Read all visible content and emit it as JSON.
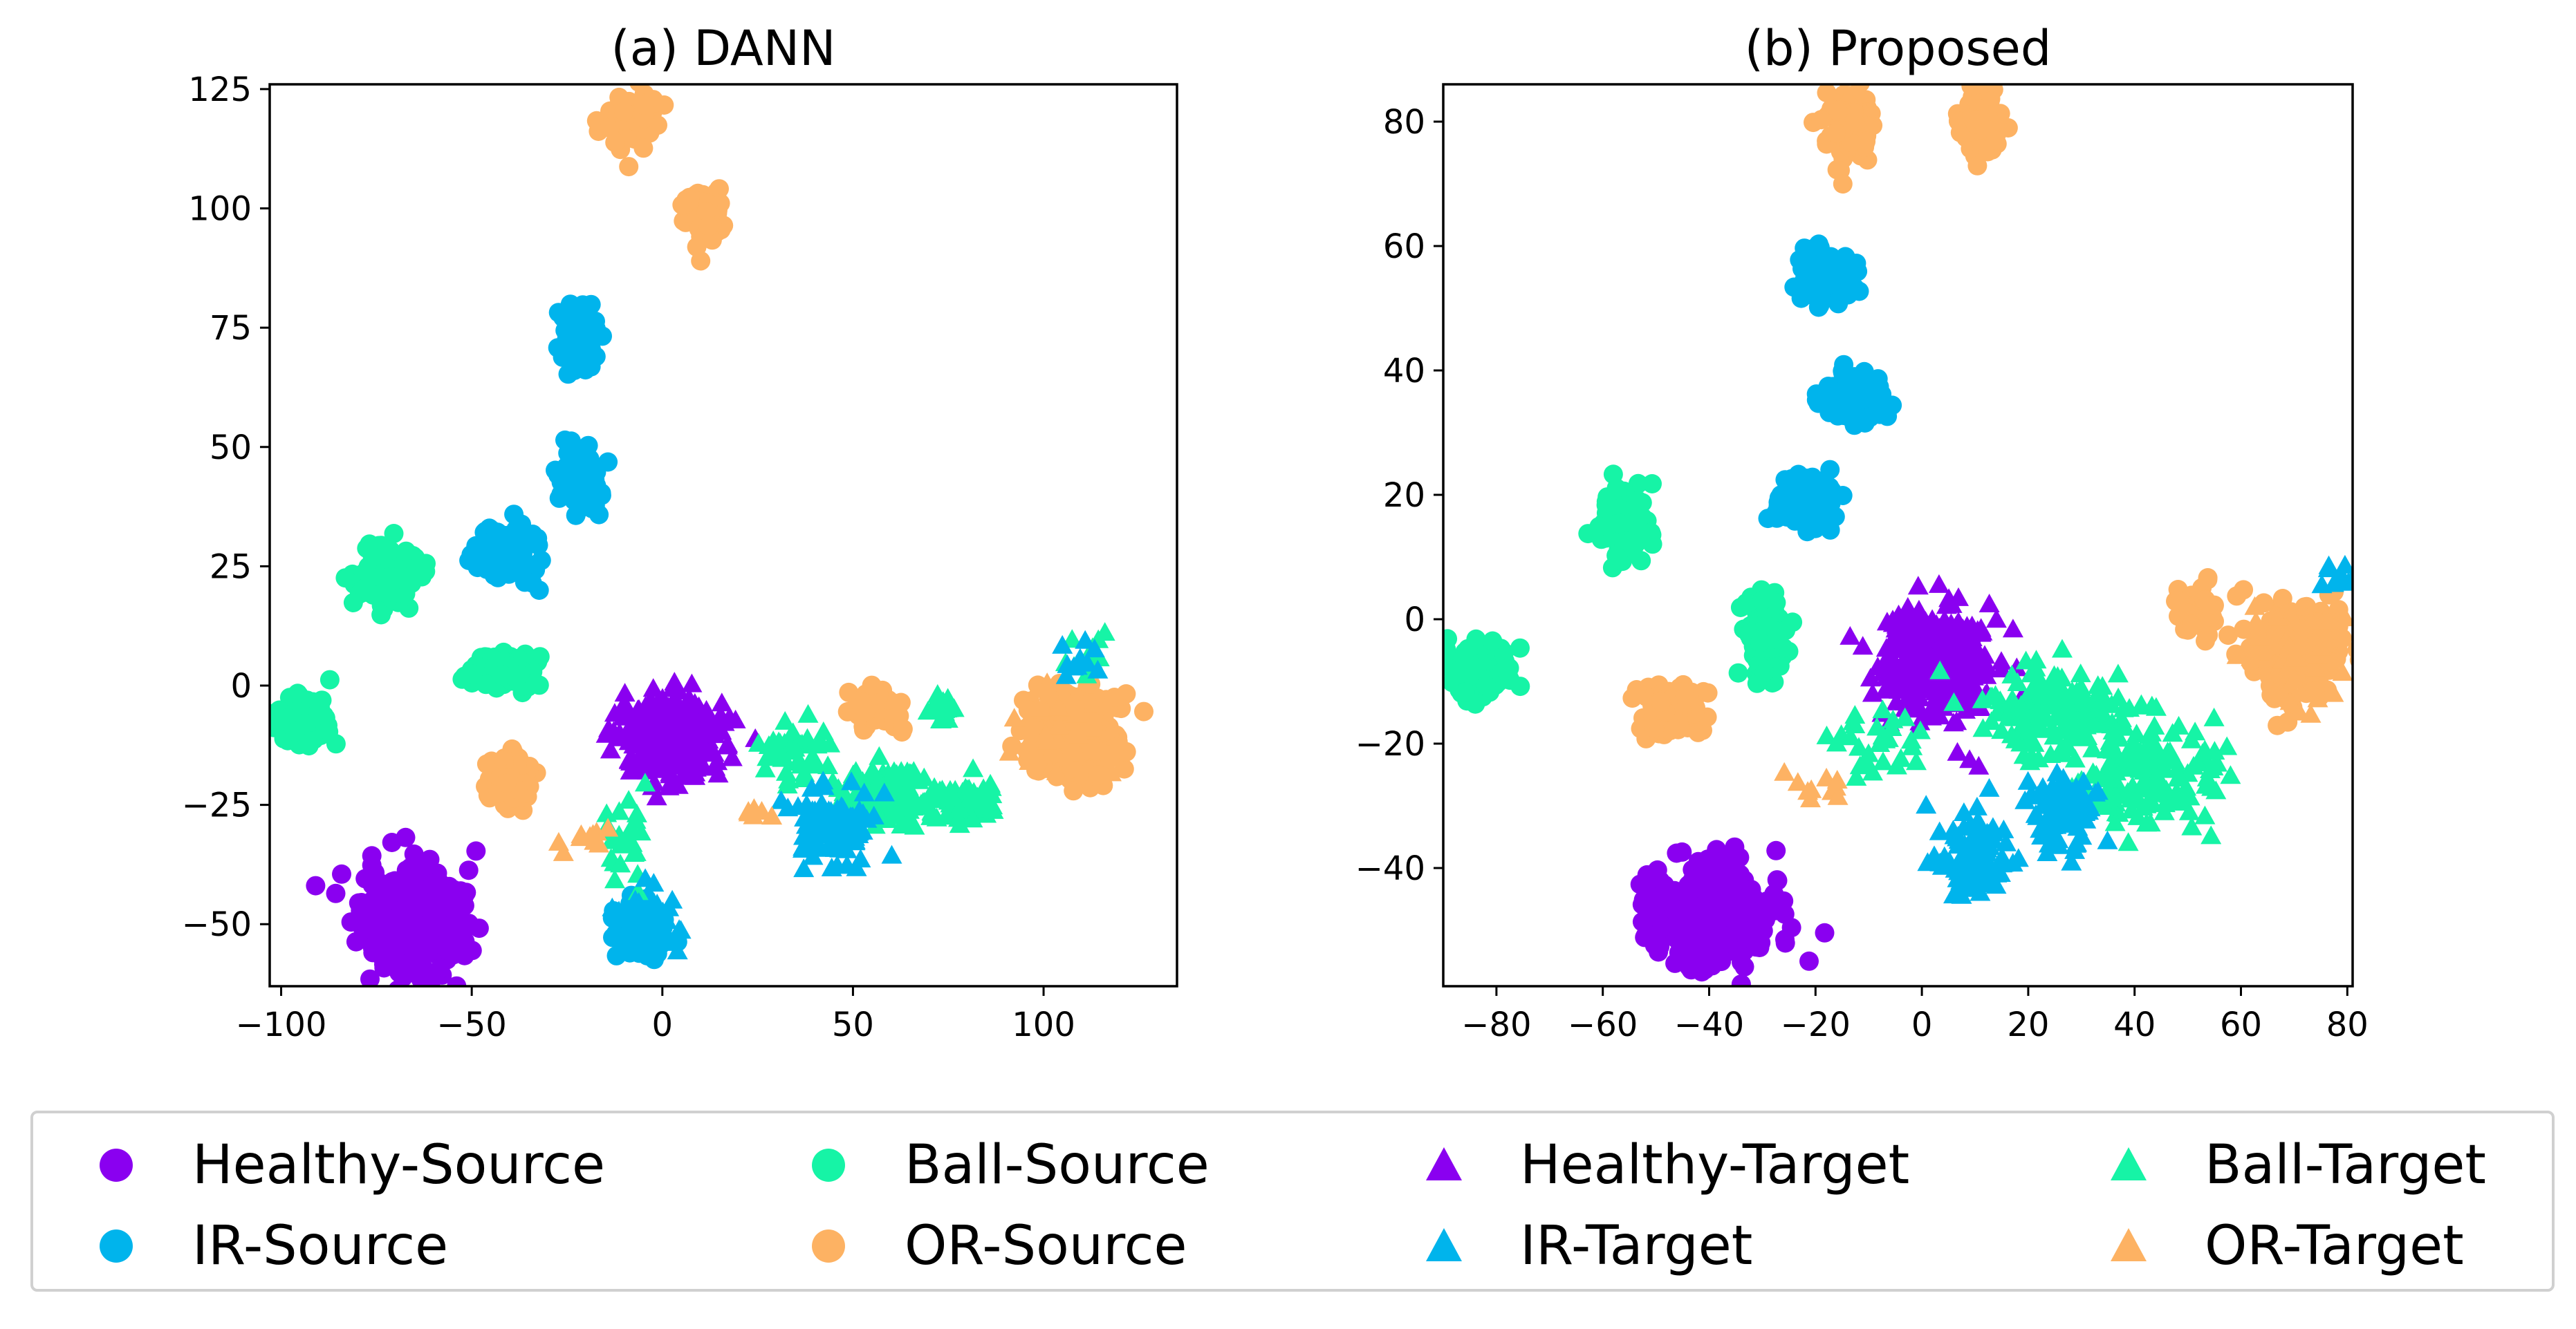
{
  "colors": {
    "healthy": "#8a00f0",
    "ir": "#00b4ec",
    "ball": "#16f4a6",
    "or": "#fdb263"
  },
  "legend": [
    {
      "label": "Healthy-Source",
      "marker": "circle",
      "color": "#8a00f0"
    },
    {
      "label": "Ball-Source",
      "marker": "circle",
      "color": "#16f4a6"
    },
    {
      "label": "Healthy-Target",
      "marker": "triangle",
      "color": "#8a00f0"
    },
    {
      "label": "Ball-Target",
      "marker": "triangle",
      "color": "#16f4a6"
    },
    {
      "label": "IR-Source",
      "marker": "circle",
      "color": "#00b4ec"
    },
    {
      "label": "OR-Source",
      "marker": "circle",
      "color": "#fdb263"
    },
    {
      "label": "IR-Target",
      "marker": "triangle",
      "color": "#00b4ec"
    },
    {
      "label": "OR-Target",
      "marker": "triangle",
      "color": "#fdb263"
    }
  ],
  "chart_data": [
    {
      "type": "scatter",
      "title": "(a) DANN",
      "xlabel": "",
      "ylabel": "",
      "xlim": [
        -103,
        135
      ],
      "ylim": [
        -63,
        126
      ],
      "xticks": [
        -100,
        -50,
        0,
        50,
        100
      ],
      "yticks": [
        -50,
        -25,
        0,
        25,
        50,
        75,
        100,
        125
      ],
      "legend_position": "bottom",
      "clusters": [
        {
          "series": "Healthy-Source",
          "marker": "circle",
          "color": "#8a00f0",
          "cx": -65,
          "cy": -50,
          "sx": 6.5,
          "sy": 5.5,
          "n": 480
        },
        {
          "series": "Ball-Source",
          "marker": "circle",
          "color": "#16f4a6",
          "cx": -95,
          "cy": -7,
          "sx": 3.5,
          "sy": 2.8,
          "n": 120
        },
        {
          "series": "Ball-Source",
          "marker": "circle",
          "color": "#16f4a6",
          "cx": -73,
          "cy": 23,
          "sx": 3.5,
          "sy": 2.8,
          "n": 120
        },
        {
          "series": "Ball-Source",
          "marker": "circle",
          "color": "#16f4a6",
          "cx": -42,
          "cy": 3,
          "sx": 4,
          "sy": 1.8,
          "n": 120
        },
        {
          "series": "IR-Source",
          "marker": "circle",
          "color": "#00b4ec",
          "cx": -40,
          "cy": 28,
          "sx": 3.8,
          "sy": 2.8,
          "n": 140
        },
        {
          "series": "IR-Source",
          "marker": "circle",
          "color": "#00b4ec",
          "cx": -22,
          "cy": 44,
          "sx": 2.5,
          "sy": 3.2,
          "n": 140
        },
        {
          "series": "IR-Source",
          "marker": "circle",
          "color": "#00b4ec",
          "cx": -22,
          "cy": 73,
          "sx": 2.2,
          "sy": 3.2,
          "n": 140
        },
        {
          "series": "IR-Source",
          "marker": "circle",
          "color": "#00b4ec",
          "cx": -6,
          "cy": -51,
          "sx": 3,
          "sy": 3,
          "n": 140
        },
        {
          "series": "OR-Source",
          "marker": "circle",
          "color": "#fdb263",
          "cx": -40,
          "cy": -20,
          "sx": 2.8,
          "sy": 3.2,
          "n": 110
        },
        {
          "series": "OR-Source",
          "marker": "circle",
          "color": "#fdb263",
          "cx": -8,
          "cy": 119,
          "sx": 3,
          "sy": 2.5,
          "n": 110
        },
        {
          "series": "OR-Source",
          "marker": "circle",
          "color": "#fdb263",
          "cx": 11,
          "cy": 99,
          "sx": 2.5,
          "sy": 2.5,
          "n": 110
        },
        {
          "series": "OR-Source",
          "marker": "circle",
          "color": "#fdb263",
          "cx": 57,
          "cy": -5,
          "sx": 3,
          "sy": 2,
          "n": 60
        },
        {
          "series": "OR-Source",
          "marker": "circle",
          "color": "#fdb263",
          "cx": 108,
          "cy": -10,
          "sx": 5.5,
          "sy": 4.5,
          "n": 260
        },
        {
          "series": "Healthy-Target",
          "marker": "triangle",
          "color": "#8a00f0",
          "cx": 3,
          "cy": -11,
          "sx": 7,
          "sy": 4,
          "n": 360
        },
        {
          "series": "Ball-Target",
          "marker": "triangle",
          "color": "#16f4a6",
          "cx": 35,
          "cy": -14,
          "sx": 4.5,
          "sy": 3,
          "n": 50
        },
        {
          "series": "Ball-Target",
          "marker": "triangle",
          "color": "#16f4a6",
          "cx": 58,
          "cy": -23,
          "sx": 6,
          "sy": 3,
          "n": 150
        },
        {
          "series": "Ball-Target",
          "marker": "triangle",
          "color": "#16f4a6",
          "cx": 80,
          "cy": -25,
          "sx": 5,
          "sy": 2,
          "n": 60
        },
        {
          "series": "Ball-Target",
          "marker": "triangle",
          "color": "#16f4a6",
          "cx": 73,
          "cy": -5,
          "sx": 2,
          "sy": 2,
          "n": 15
        },
        {
          "series": "Ball-Target",
          "marker": "triangle",
          "color": "#16f4a6",
          "cx": -10,
          "cy": -30,
          "sx": 3,
          "sy": 5,
          "n": 25
        },
        {
          "series": "Ball-Target",
          "marker": "triangle",
          "color": "#16f4a6",
          "cx": 112,
          "cy": 6,
          "sx": 3,
          "sy": 2,
          "n": 10
        },
        {
          "series": "IR-Target",
          "marker": "triangle",
          "color": "#00b4ec",
          "cx": 45,
          "cy": -29,
          "sx": 4.5,
          "sy": 3.5,
          "n": 120
        },
        {
          "series": "IR-Target",
          "marker": "triangle",
          "color": "#00b4ec",
          "cx": -5,
          "cy": -50,
          "sx": 3.5,
          "sy": 3,
          "n": 80
        },
        {
          "series": "IR-Target",
          "marker": "triangle",
          "color": "#00b4ec",
          "cx": 108,
          "cy": 5,
          "sx": 3,
          "sy": 2,
          "n": 10
        },
        {
          "series": "OR-Target",
          "marker": "triangle",
          "color": "#fdb263",
          "cx": 25,
          "cy": -27,
          "sx": 2,
          "sy": 1,
          "n": 6
        },
        {
          "series": "OR-Target",
          "marker": "triangle",
          "color": "#fdb263",
          "cx": -20,
          "cy": -32,
          "sx": 3,
          "sy": 2,
          "n": 10
        },
        {
          "series": "OR-Target",
          "marker": "triangle",
          "color": "#fdb263",
          "cx": 105,
          "cy": -10,
          "sx": 6,
          "sy": 5,
          "n": 40
        }
      ]
    },
    {
      "type": "scatter",
      "title": "(b) Proposed",
      "xlabel": "",
      "ylabel": "",
      "xlim": [
        -90,
        81
      ],
      "ylim": [
        -59,
        86
      ],
      "xticks": [
        -80,
        -60,
        -40,
        -20,
        0,
        20,
        40,
        60,
        80
      ],
      "yticks": [
        -40,
        -20,
        0,
        20,
        40,
        60,
        80
      ],
      "legend_position": "bottom",
      "clusters": [
        {
          "series": "Healthy-Source",
          "marker": "circle",
          "color": "#8a00f0",
          "cx": -40,
          "cy": -48,
          "sx": 5.5,
          "sy": 3.8,
          "n": 440
        },
        {
          "series": "Ball-Source",
          "marker": "circle",
          "color": "#16f4a6",
          "cx": -84,
          "cy": -8,
          "sx": 3,
          "sy": 2.3,
          "n": 120
        },
        {
          "series": "Ball-Source",
          "marker": "circle",
          "color": "#16f4a6",
          "cx": -56,
          "cy": 15,
          "sx": 2.2,
          "sy": 2.8,
          "n": 120
        },
        {
          "series": "Ball-Source",
          "marker": "circle",
          "color": "#16f4a6",
          "cx": -29,
          "cy": -3,
          "sx": 2,
          "sy": 3.5,
          "n": 120
        },
        {
          "series": "IR-Source",
          "marker": "circle",
          "color": "#00b4ec",
          "cx": -18,
          "cy": 55,
          "sx": 2.5,
          "sy": 2.2,
          "n": 140
        },
        {
          "series": "IR-Source",
          "marker": "circle",
          "color": "#00b4ec",
          "cx": -12,
          "cy": 36,
          "sx": 2.5,
          "sy": 2,
          "n": 140
        },
        {
          "series": "IR-Source",
          "marker": "circle",
          "color": "#00b4ec",
          "cx": -22,
          "cy": 19,
          "sx": 3,
          "sy": 1.8,
          "n": 140
        },
        {
          "series": "OR-Source",
          "marker": "circle",
          "color": "#fdb263",
          "cx": -47,
          "cy": -15,
          "sx": 3,
          "sy": 2.2,
          "n": 120
        },
        {
          "series": "OR-Source",
          "marker": "circle",
          "color": "#fdb263",
          "cx": -14,
          "cy": 80,
          "sx": 2.2,
          "sy": 2.8,
          "n": 120
        },
        {
          "series": "OR-Source",
          "marker": "circle",
          "color": "#fdb263",
          "cx": 11,
          "cy": 80,
          "sx": 2,
          "sy": 2.8,
          "n": 120
        },
        {
          "series": "OR-Source",
          "marker": "circle",
          "color": "#fdb263",
          "cx": 52,
          "cy": 1,
          "sx": 2,
          "sy": 2,
          "n": 60
        },
        {
          "series": "OR-Source",
          "marker": "circle",
          "color": "#fdb263",
          "cx": 70,
          "cy": -5,
          "sx": 4,
          "sy": 4,
          "n": 200
        },
        {
          "series": "Healthy-Target",
          "marker": "triangle",
          "color": "#8a00f0",
          "cx": 3,
          "cy": -7,
          "sx": 5.5,
          "sy": 4.5,
          "n": 360
        },
        {
          "series": "Ball-Target",
          "marker": "triangle",
          "color": "#16f4a6",
          "cx": 25,
          "cy": -14,
          "sx": 8,
          "sy": 4,
          "n": 150
        },
        {
          "series": "Ball-Target",
          "marker": "triangle",
          "color": "#16f4a6",
          "cx": 42,
          "cy": -25,
          "sx": 7,
          "sy": 4,
          "n": 150
        },
        {
          "series": "Ball-Target",
          "marker": "triangle",
          "color": "#16f4a6",
          "cx": -10,
          "cy": -20,
          "sx": 4,
          "sy": 3,
          "n": 30
        },
        {
          "series": "IR-Target",
          "marker": "triangle",
          "color": "#00b4ec",
          "cx": 10,
          "cy": -38,
          "sx": 3,
          "sy": 3,
          "n": 130
        },
        {
          "series": "IR-Target",
          "marker": "triangle",
          "color": "#00b4ec",
          "cx": 27,
          "cy": -31,
          "sx": 3.5,
          "sy": 3,
          "n": 100
        },
        {
          "series": "IR-Target",
          "marker": "triangle",
          "color": "#00b4ec",
          "cx": 78,
          "cy": 7,
          "sx": 2,
          "sy": 1,
          "n": 10
        },
        {
          "series": "OR-Target",
          "marker": "triangle",
          "color": "#fdb263",
          "cx": -20,
          "cy": -27,
          "sx": 3,
          "sy": 2,
          "n": 10
        },
        {
          "series": "OR-Target",
          "marker": "triangle",
          "color": "#fdb263",
          "cx": 70,
          "cy": -5,
          "sx": 5,
          "sy": 4,
          "n": 40
        }
      ]
    }
  ]
}
